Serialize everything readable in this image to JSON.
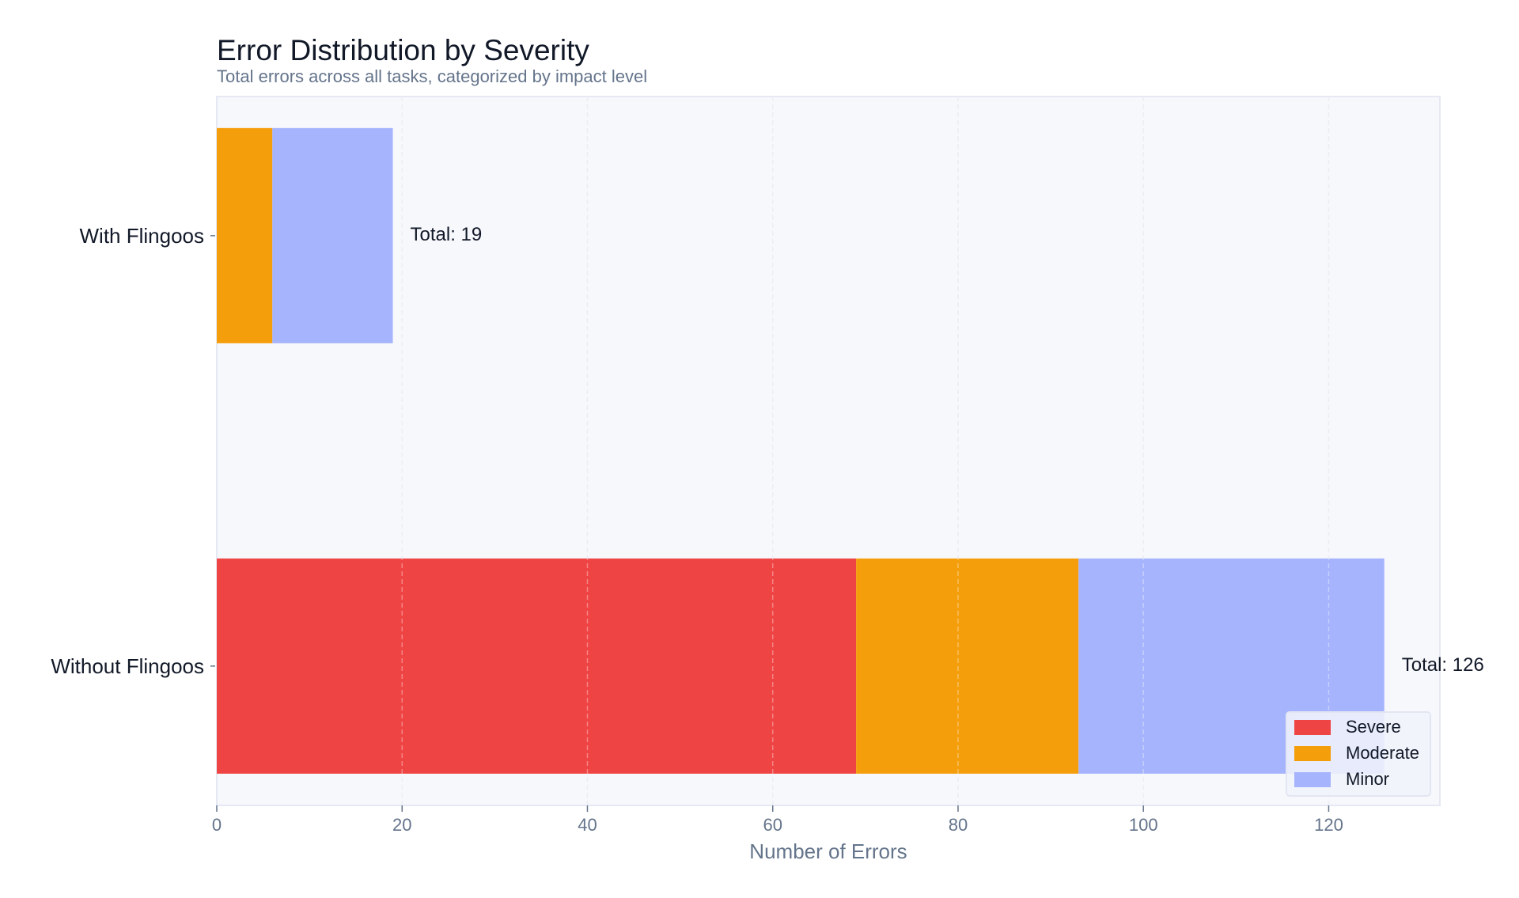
{
  "chart_data": {
    "type": "bar",
    "orientation": "horizontal",
    "stacked": true,
    "title": "Error Distribution by Severity",
    "subtitle": "Total errors across all tasks, categorized by impact level",
    "xlabel": "Number of Errors",
    "ylabel": "",
    "xlim": [
      0,
      132
    ],
    "xticks": [
      0,
      20,
      40,
      60,
      80,
      100,
      120
    ],
    "grid": "vertical dashed",
    "legend_position": "bottom-right",
    "categories": [
      "With Flingoos",
      "Without Flingoos"
    ],
    "series": [
      {
        "name": "Severe",
        "color": "#EF4444",
        "values": [
          0,
          69
        ]
      },
      {
        "name": "Moderate",
        "color": "#F59E0B",
        "values": [
          6,
          24
        ]
      },
      {
        "name": "Minor",
        "color": "#A5B4FC",
        "values": [
          13,
          33
        ]
      }
    ],
    "annotations": [
      "Total: 19",
      "Total: 126"
    ]
  }
}
